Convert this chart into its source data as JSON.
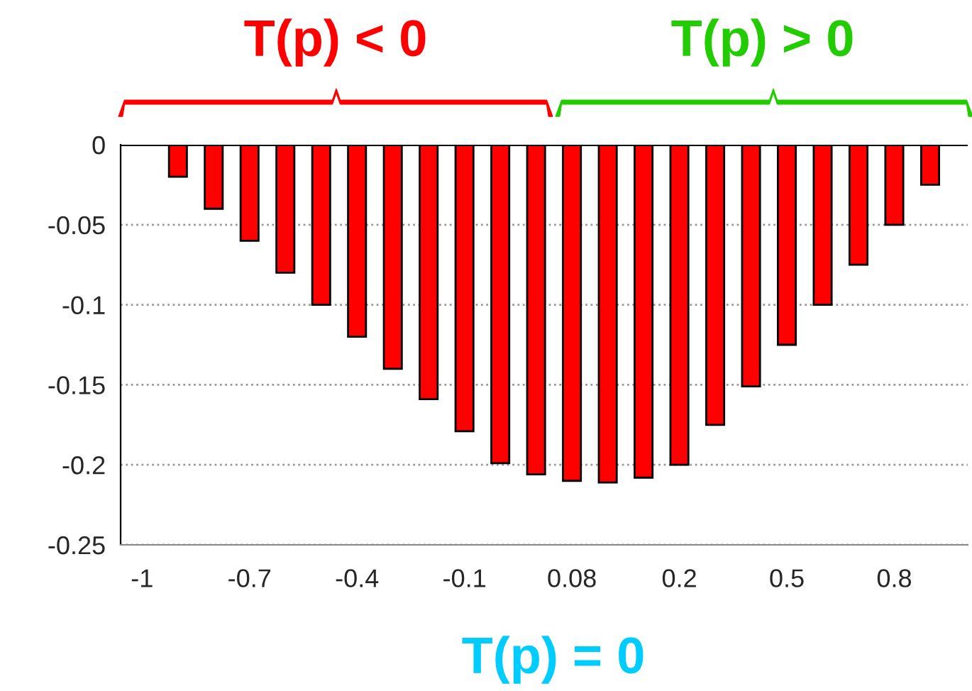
{
  "chart_data": {
    "type": "bar",
    "categories": [
      "-1",
      null,
      null,
      "-0.7",
      null,
      null,
      "-0.4",
      null,
      null,
      "-0.1",
      null,
      null,
      "0.08",
      null,
      null,
      "0.2",
      null,
      null,
      "0.5",
      null,
      null,
      "0.8",
      null,
      null
    ],
    "series": [
      {
        "color": "#ff0000",
        "values": [
          0,
          -0.02,
          -0.04,
          -0.06,
          -0.08,
          -0.1,
          -0.12,
          -0.14,
          -0.159,
          -0.179,
          -0.199,
          -0.206,
          -0.21,
          -0.211,
          -0.208,
          -0.2,
          -0.175,
          -0.151,
          -0.125,
          -0.1,
          -0.075,
          -0.05,
          -0.025,
          0
        ]
      }
    ],
    "ylim": [
      -0.25,
      0
    ],
    "yticks": [
      0,
      -0.05,
      -0.1,
      -0.15,
      -0.2,
      -0.25
    ],
    "grid": "y",
    "legend": false,
    "annotations": [
      "T(p) < 0",
      "T(p) > 0",
      "T(p) = 0"
    ]
  }
}
